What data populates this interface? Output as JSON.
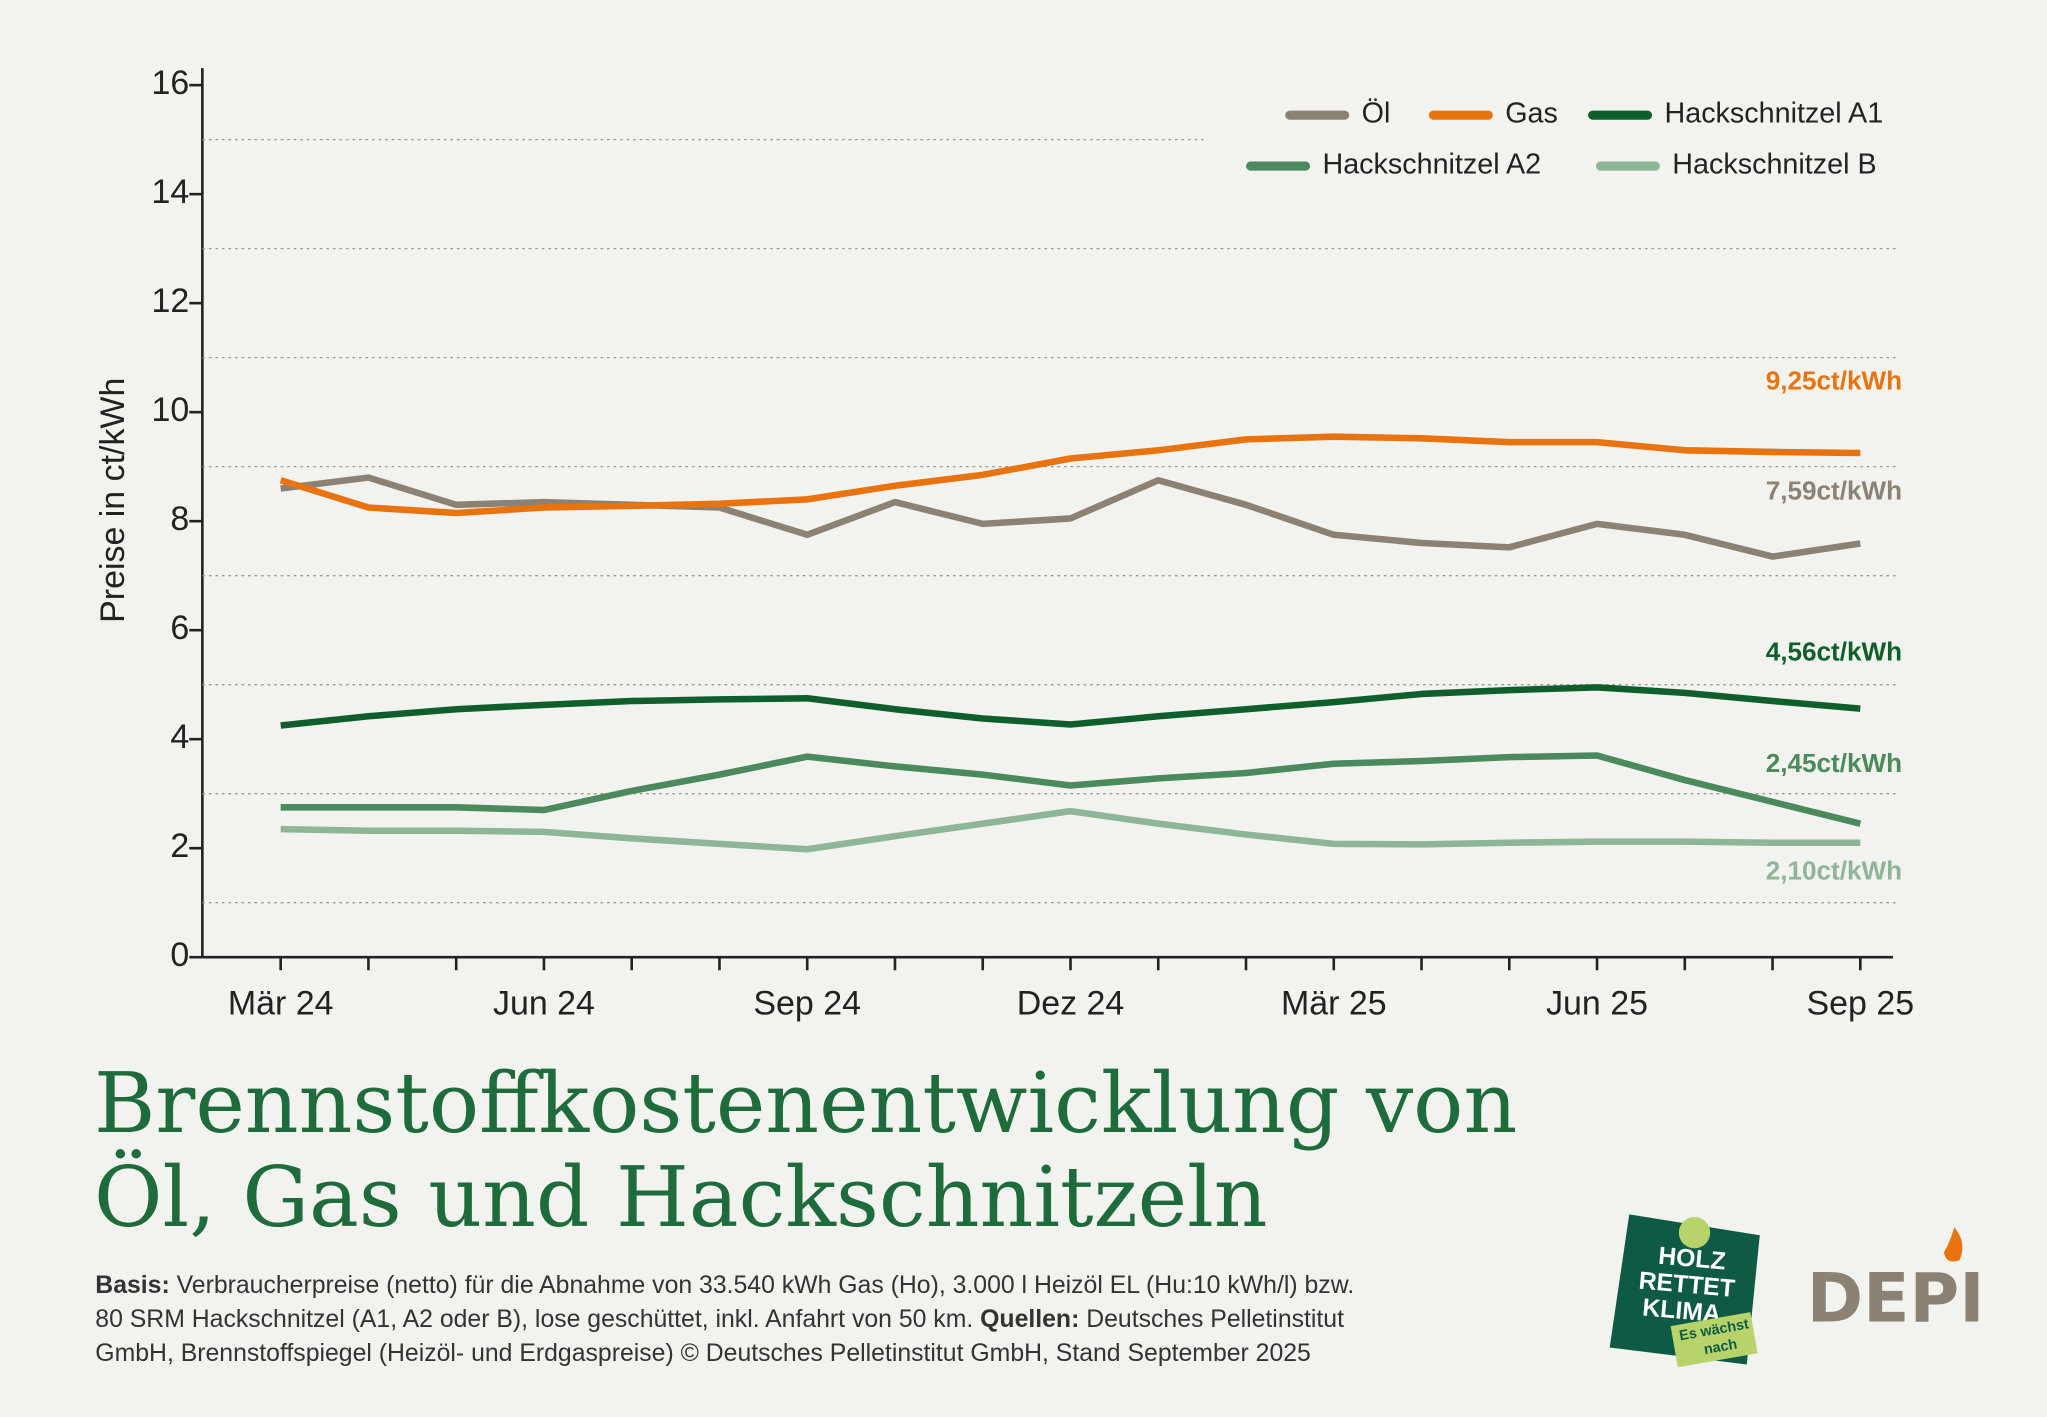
{
  "chart_data": {
    "type": "line",
    "title": [
      "Brennstoffkostenentwicklung von",
      "Öl, Gas und Hackschnitzeln"
    ],
    "y_label": "Preise in ct/kWh",
    "categories": [
      "Mär 24",
      null,
      null,
      "Jun 24",
      null,
      null,
      "Sep 24",
      null,
      null,
      "Dez 24",
      null,
      null,
      "Mär 25",
      null,
      null,
      "Jun 25",
      null,
      null,
      "Sep 25"
    ],
    "ylim": [
      0,
      16
    ],
    "yticks": [
      0,
      2,
      4,
      6,
      8,
      10,
      12,
      14,
      16
    ],
    "minor_yticks": [
      1,
      3,
      5,
      7,
      9,
      11,
      13,
      15
    ],
    "grid": true,
    "series": [
      {
        "name": "Öl",
        "color": "#8b8273",
        "values": [
          8.6,
          8.8,
          8.3,
          8.35,
          8.3,
          8.25,
          7.75,
          8.35,
          7.95,
          8.05,
          8.75,
          8.3,
          7.75,
          7.6,
          7.52,
          7.95,
          7.75,
          7.35,
          7.59
        ],
        "value_labels": [
          null,
          null,
          null,
          null,
          null,
          null,
          null,
          null,
          null,
          null,
          null,
          null,
          null,
          null,
          null,
          null,
          null,
          null,
          "7,59ct/kWh"
        ]
      },
      {
        "name": "Gas",
        "color": "#e8730f",
        "values": [
          8.75,
          8.25,
          8.15,
          8.25,
          8.28,
          8.32,
          8.4,
          8.65,
          8.85,
          9.15,
          9.3,
          9.5,
          9.55,
          9.52,
          9.45,
          9.45,
          9.3,
          9.27,
          9.25
        ],
        "value_labels": [
          null,
          null,
          null,
          null,
          null,
          null,
          null,
          null,
          null,
          null,
          null,
          null,
          null,
          null,
          null,
          null,
          null,
          null,
          "9,25ct/kWh"
        ]
      },
      {
        "name": "Hackschnitzel A1",
        "color": "#0f5f2d",
        "values": [
          4.25,
          4.42,
          4.55,
          4.63,
          4.7,
          4.73,
          4.75,
          4.55,
          4.38,
          4.27,
          4.42,
          4.55,
          4.68,
          4.83,
          4.9,
          4.95,
          4.85,
          4.7,
          4.56
        ],
        "value_labels": [
          null,
          null,
          null,
          null,
          null,
          null,
          null,
          null,
          null,
          null,
          null,
          null,
          null,
          null,
          null,
          null,
          null,
          null,
          "4,56ct/kWh"
        ]
      },
      {
        "name": "Hackschnitzel A2",
        "color": "#4a8a5c",
        "values": [
          2.75,
          2.75,
          2.75,
          2.7,
          3.05,
          3.35,
          3.68,
          3.5,
          3.35,
          3.15,
          3.28,
          3.38,
          3.55,
          3.6,
          3.67,
          3.7,
          3.25,
          2.85,
          2.45
        ],
        "value_labels": [
          null,
          null,
          null,
          null,
          null,
          null,
          null,
          null,
          null,
          null,
          null,
          null,
          null,
          null,
          null,
          null,
          null,
          null,
          "2,45ct/kWh"
        ]
      },
      {
        "name": "Hackschnitzel B",
        "color": "#8db596",
        "values": [
          2.35,
          2.32,
          2.32,
          2.3,
          2.18,
          2.08,
          1.98,
          2.22,
          2.45,
          2.68,
          2.45,
          2.25,
          2.08,
          2.07,
          2.1,
          2.12,
          2.12,
          2.1,
          2.1
        ],
        "value_labels": [
          null,
          null,
          null,
          null,
          null,
          null,
          null,
          null,
          null,
          null,
          null,
          null,
          null,
          null,
          null,
          null,
          null,
          null,
          "2,10ct/kWh"
        ]
      }
    ],
    "footnote": [
      [
        {
          "text": "Basis:",
          "bold": true
        },
        {
          "text": " Verbraucherpreise (netto) für die Abnahme von 33.540 kWh Gas (Ho), 3.000 l Heizöl EL (Hu:10 kWh/l) bzw."
        }
      ],
      [
        {
          "text": "80 SRM Hackschnitzel (A1, A2 oder B), lose geschüttet, inkl. Anfahrt von 50 km. "
        },
        {
          "text": "Quellen:",
          "bold": true
        },
        {
          "text": " Deutsches Pelletinstitut"
        }
      ],
      [
        {
          "text": "GmbH, Brennstoffspiegel (Heizöl- und Erdgaspreise) © Deutsches Pelletinstitut GmbH, Stand September 2025"
        }
      ]
    ],
    "logos": {
      "holz": [
        "HOLZ",
        "RETTET",
        "KLIMA"
      ],
      "holz_tag": [
        "Es wächst",
        "nach"
      ],
      "depi": "DEPI"
    }
  }
}
